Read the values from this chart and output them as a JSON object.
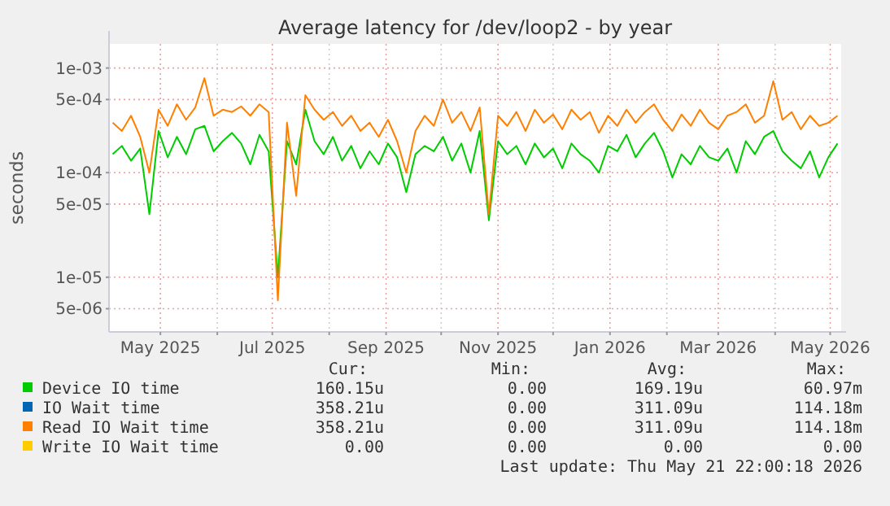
{
  "chart_data": {
    "type": "line",
    "title": "Average latency for /dev/loop2 - by year",
    "ylabel": "seconds",
    "log": "y",
    "grid": true,
    "legend": "bottom",
    "marker": "none",
    "line_style": "solid",
    "xlim": [
      "2025-04-03",
      "2026-05-07"
    ],
    "xticks": [
      {
        "value": "2025-05-01",
        "label": "May 2025"
      },
      {
        "value": "2025-06-01",
        "label": null
      },
      {
        "value": "2025-07-01",
        "label": "Jul 2025"
      },
      {
        "value": "2025-08-01",
        "label": null
      },
      {
        "value": "2025-09-01",
        "label": "Sep 2025"
      },
      {
        "value": "2025-10-01",
        "label": null
      },
      {
        "value": "2025-11-01",
        "label": "Nov 2025"
      },
      {
        "value": "2025-12-01",
        "label": null
      },
      {
        "value": "2026-01-01",
        "label": "Jan 2026"
      },
      {
        "value": "2026-02-01",
        "label": null
      },
      {
        "value": "2026-03-01",
        "label": "Mar 2026"
      },
      {
        "value": "2026-04-01",
        "label": null
      },
      {
        "value": "2026-05-01",
        "label": "May 2026"
      }
    ],
    "ylim": [
      3e-06,
      0.0017
    ],
    "yticks": [
      {
        "value": 0.001,
        "label": "1e-03"
      },
      {
        "value": 0.0005,
        "label": "5e-04"
      },
      {
        "value": 0.0001,
        "label": "1e-04"
      },
      {
        "value": 5e-05,
        "label": "5e-05"
      },
      {
        "value": 1e-05,
        "label": "1e-05"
      },
      {
        "value": 5e-06,
        "label": "5e-06"
      }
    ],
    "x": [
      "2025-04-05",
      "2025-04-10",
      "2025-04-15",
      "2025-04-20",
      "2025-04-25",
      "2025-04-30",
      "2025-05-05",
      "2025-05-10",
      "2025-05-15",
      "2025-05-20",
      "2025-05-25",
      "2025-05-30",
      "2025-06-04",
      "2025-06-09",
      "2025-06-14",
      "2025-06-19",
      "2025-06-24",
      "2025-06-29",
      "2025-07-04",
      "2025-07-09",
      "2025-07-14",
      "2025-07-19",
      "2025-07-24",
      "2025-07-29",
      "2025-08-03",
      "2025-08-08",
      "2025-08-13",
      "2025-08-18",
      "2025-08-23",
      "2025-08-28",
      "2025-09-02",
      "2025-09-07",
      "2025-09-12",
      "2025-09-17",
      "2025-09-22",
      "2025-09-27",
      "2025-10-02",
      "2025-10-07",
      "2025-10-12",
      "2025-10-17",
      "2025-10-22",
      "2025-10-27",
      "2025-11-01",
      "2025-11-06",
      "2025-11-11",
      "2025-11-16",
      "2025-11-21",
      "2025-11-26",
      "2025-12-01",
      "2025-12-06",
      "2025-12-11",
      "2025-12-16",
      "2025-12-21",
      "2025-12-26",
      "2025-12-31",
      "2026-01-05",
      "2026-01-10",
      "2026-01-15",
      "2026-01-20",
      "2026-01-25",
      "2026-01-30",
      "2026-02-04",
      "2026-02-09",
      "2026-02-14",
      "2026-02-19",
      "2026-02-24",
      "2026-03-01",
      "2026-03-06",
      "2026-03-11",
      "2026-03-16",
      "2026-03-21",
      "2026-03-26",
      "2026-03-31",
      "2026-04-05",
      "2026-04-10",
      "2026-04-15",
      "2026-04-20",
      "2026-04-25",
      "2026-04-30",
      "2026-05-05"
    ],
    "series": [
      {
        "name": "Device IO time",
        "color": "#00cc00",
        "values": [
          0.00015,
          0.00018,
          0.00013,
          0.00017,
          4e-05,
          0.00025,
          0.00014,
          0.00022,
          0.00015,
          0.00026,
          0.00028,
          0.00016,
          0.0002,
          0.00024,
          0.00019,
          0.00012,
          0.00023,
          0.00016,
          1e-05,
          0.0002,
          0.00012,
          0.0004,
          0.0002,
          0.00015,
          0.00022,
          0.00013,
          0.00018,
          0.00011,
          0.00016,
          0.00012,
          0.00019,
          0.00014,
          6.5e-05,
          0.00015,
          0.00018,
          0.00016,
          0.00022,
          0.00013,
          0.00019,
          0.0001,
          0.00025,
          3.5e-05,
          0.0002,
          0.00015,
          0.00018,
          0.00012,
          0.00019,
          0.00014,
          0.00017,
          0.00011,
          0.00019,
          0.00015,
          0.00013,
          0.0001,
          0.00018,
          0.00016,
          0.00023,
          0.00014,
          0.00019,
          0.00024,
          0.00016,
          9e-05,
          0.00015,
          0.00012,
          0.00018,
          0.00014,
          0.00013,
          0.00017,
          0.0001,
          0.0002,
          0.00015,
          0.00022,
          0.00025,
          0.00016,
          0.00013,
          0.00011,
          0.00016,
          9e-05,
          0.00014,
          0.00019
        ]
      },
      {
        "name": "IO Wait time",
        "color": "#0066b3",
        "values": [
          null,
          null,
          null,
          null,
          null,
          null,
          null,
          null,
          null,
          null,
          null,
          null,
          null,
          null,
          null,
          null,
          null,
          null,
          null,
          null,
          null,
          null,
          null,
          null,
          null,
          null,
          null,
          null,
          null,
          null,
          null,
          null,
          null,
          null,
          null,
          null,
          null,
          null,
          null,
          null,
          null,
          null,
          null,
          null,
          null,
          null,
          null,
          null,
          null,
          null,
          null,
          null,
          null,
          null,
          null,
          null,
          null,
          null,
          null,
          null,
          null,
          null,
          null,
          null,
          null,
          null,
          null,
          null,
          null,
          null,
          null,
          null,
          null,
          null,
          null,
          null,
          null,
          null,
          null,
          null
        ]
      },
      {
        "name": "Read IO Wait time",
        "color": "#ff8000",
        "values": [
          0.0003,
          0.00025,
          0.00035,
          0.00022,
          0.0001,
          0.0004,
          0.00028,
          0.00045,
          0.00032,
          0.00042,
          0.0008,
          0.00035,
          0.0004,
          0.00038,
          0.00043,
          0.00035,
          0.00045,
          0.00038,
          6e-06,
          0.0003,
          6e-05,
          0.00055,
          0.0004,
          0.00032,
          0.00038,
          0.00028,
          0.00035,
          0.00025,
          0.0003,
          0.00022,
          0.00032,
          0.0002,
          0.0001,
          0.00025,
          0.00035,
          0.00028,
          0.0005,
          0.0003,
          0.00038,
          0.00025,
          0.00042,
          4e-05,
          0.00035,
          0.00028,
          0.00038,
          0.00025,
          0.0004,
          0.0003,
          0.00036,
          0.00026,
          0.0004,
          0.00032,
          0.00038,
          0.00024,
          0.00035,
          0.00028,
          0.0004,
          0.0003,
          0.00038,
          0.00045,
          0.00032,
          0.00025,
          0.00036,
          0.00028,
          0.0004,
          0.0003,
          0.00026,
          0.00035,
          0.00038,
          0.00045,
          0.0003,
          0.00035,
          0.00075,
          0.00032,
          0.00038,
          0.00026,
          0.00035,
          0.00028,
          0.0003,
          0.00035
        ]
      },
      {
        "name": "Write IO Wait time",
        "color": "#ffcc00",
        "values": [
          null,
          null,
          null,
          null,
          null,
          null,
          null,
          null,
          null,
          null,
          null,
          null,
          null,
          null,
          null,
          null,
          null,
          null,
          null,
          null,
          null,
          null,
          null,
          null,
          null,
          null,
          null,
          null,
          null,
          null,
          null,
          null,
          null,
          null,
          null,
          null,
          null,
          null,
          null,
          null,
          null,
          null,
          null,
          null,
          null,
          null,
          null,
          null,
          null,
          null,
          null,
          null,
          null,
          null,
          null,
          null,
          null,
          null,
          null,
          null,
          null,
          null,
          null,
          null,
          null,
          null,
          null,
          null,
          null,
          null,
          null,
          null,
          null,
          null,
          null,
          null,
          null,
          null,
          null,
          null
        ]
      }
    ],
    "annotations": [
      "Cur:",
      "Min:",
      "Avg:",
      "Max:",
      "160.15u",
      "0.00",
      "169.19u",
      "60.97m",
      "358.21u",
      "0.00",
      "311.09u",
      "114.18m",
      "358.21u",
      "0.00",
      "311.09u",
      "114.18m",
      "0.00",
      "0.00",
      "0.00",
      "0.00",
      "Last update: Thu May 21 22:00:18 2026"
    ]
  }
}
